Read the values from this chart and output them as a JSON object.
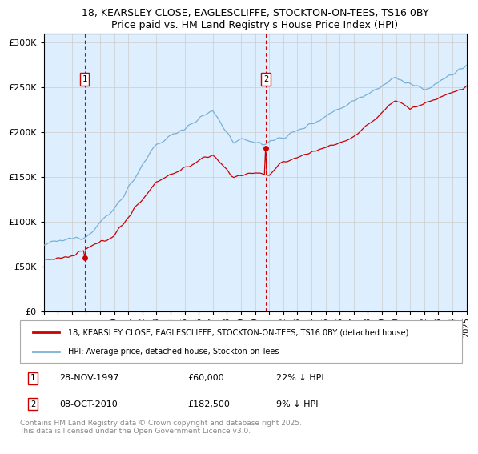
{
  "title1": "18, KEARSLEY CLOSE, EAGLESCLIFFE, STOCKTON-ON-TEES, TS16 0BY",
  "title2": "Price paid vs. HM Land Registry's House Price Index (HPI)",
  "ylim": [
    0,
    310000
  ],
  "yticks": [
    0,
    50000,
    100000,
    150000,
    200000,
    250000,
    300000
  ],
  "xmin_year": 1995,
  "xmax_year": 2025,
  "xtick_years": [
    1995,
    1996,
    1997,
    1998,
    1999,
    2000,
    2001,
    2002,
    2003,
    2004,
    2005,
    2006,
    2007,
    2008,
    2009,
    2010,
    2011,
    2012,
    2013,
    2014,
    2015,
    2016,
    2017,
    2018,
    2019,
    2020,
    2021,
    2022,
    2023,
    2024,
    2025
  ],
  "sale1_date": 1997.91,
  "sale1_price": 60000,
  "sale2_date": 2010.77,
  "sale2_price": 182500,
  "line1_color": "#cc0000",
  "line2_color": "#7ab0d4",
  "marker_color": "#cc0000",
  "vline_color": "#cc0000",
  "grid_color": "#cccccc",
  "bg_color": "#ddeeff",
  "legend1": "18, KEARSLEY CLOSE, EAGLESCLIFFE, STOCKTON-ON-TEES, TS16 0BY (detached house)",
  "legend2": "HPI: Average price, detached house, Stockton-on-Tees",
  "annotation1_date": "28-NOV-1997",
  "annotation1_price": "£60,000",
  "annotation1_hpi": "22% ↓ HPI",
  "annotation2_date": "08-OCT-2010",
  "annotation2_price": "£182,500",
  "annotation2_hpi": "9% ↓ HPI",
  "footnote": "Contains HM Land Registry data © Crown copyright and database right 2025.\nThis data is licensed under the Open Government Licence v3.0."
}
